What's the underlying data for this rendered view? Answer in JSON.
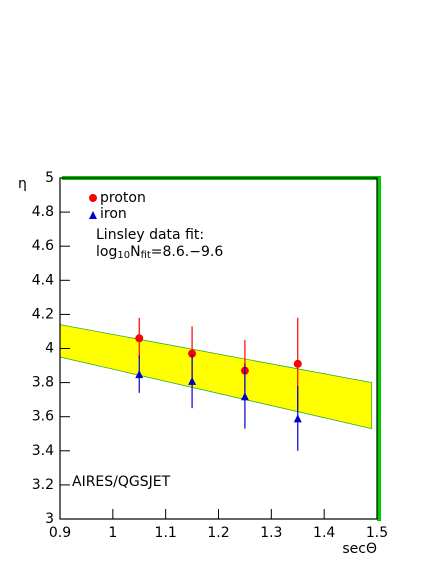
{
  "chart_data": {
    "type": "scatter",
    "x_label": "secΘ",
    "y_label": "η",
    "xlim": [
      0.9,
      1.5
    ],
    "xticks": [
      0.9,
      1,
      1.1,
      1.2,
      1.3,
      1.4,
      1.5
    ],
    "ylim": [
      3,
      5
    ],
    "yticks": [
      3,
      3.2,
      3.4,
      3.6,
      3.8,
      4,
      4.2,
      4.4,
      4.6,
      4.8,
      5
    ],
    "series": [
      {
        "name": "proton",
        "color": "#ff0000",
        "marker": "circle",
        "x": [
          1.05,
          1.15,
          1.25,
          1.35
        ],
        "values": [
          4.06,
          3.97,
          3.87,
          3.91
        ],
        "errors": [
          0.12,
          0.16,
          0.18,
          0.27
        ]
      },
      {
        "name": "iron",
        "color": "#0000cc",
        "marker": "triangle",
        "x": [
          1.05,
          1.15,
          1.25,
          1.35
        ],
        "values": [
          3.85,
          3.81,
          3.72,
          3.59
        ],
        "errors": [
          0.11,
          0.16,
          0.19,
          0.19
        ]
      }
    ],
    "band": {
      "color": "#ffff00",
      "edge_color": "#33aa33",
      "x": [
        0.9,
        1.49
      ],
      "upper": [
        4.14,
        3.8
      ],
      "lower": [
        3.95,
        3.53
      ]
    },
    "fit_title": "Linsley data fit:",
    "fit_formula": {
      "log": "log",
      "log_base": "10",
      "n": "N",
      "n_sub": "fit",
      "rest": "=8.6.−9.6"
    },
    "annotation": "AIRES/QGSJET"
  }
}
